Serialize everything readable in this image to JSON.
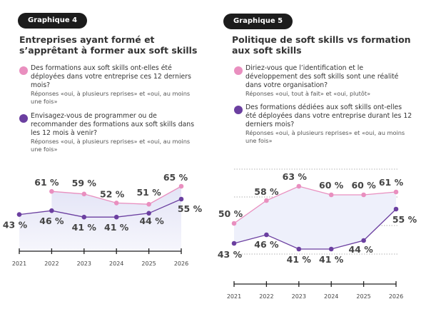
{
  "panels": [
    {
      "badge": "Graphique 4",
      "title": "Entreprises ayant formé et s’apprêtant à former aux soft skills",
      "legend": [
        {
          "question": "Des formations aux soft skills ont-elles été déployées dans votre entreprise ces 12 derniers mois?",
          "note": "Réponses «oui, à plusieurs reprises» et «oui, au moins une fois»",
          "color": "#e98fbf"
        },
        {
          "question": "Envisagez-vous de programmer ou de recommander des formations aux soft skills dans les 12 mois à venir?",
          "note": "Réponses «oui, à plusieurs reprises» et «oui, au moins une fois»",
          "color": "#6b3fa0"
        }
      ]
    },
    {
      "badge": "Graphique 5",
      "title": "Politique de soft skills vs formation aux soft skills",
      "legend": [
        {
          "question": "Diriez-vous que l’identification et le développement des soft skills sont une réalité dans votre organisation?",
          "note": "Réponses «oui, tout à fait» et «oui, plutôt»",
          "color": "#e98fbf"
        },
        {
          "question": "Des formations dédiées aux soft skills ont-elles été déployées dans votre entreprise durant les 12 derniers mois?",
          "note": "Réponses «oui, à plusieurs reprises» et «oui, au moins une fois»",
          "color": "#6b3fa0"
        }
      ]
    }
  ],
  "chart_data": [
    {
      "type": "line",
      "categories": [
        "2021",
        "2022",
        "2023",
        "2024",
        "2025",
        "2026"
      ],
      "series": [
        {
          "values": [
            null,
            61,
            59,
            52,
            51,
            65
          ],
          "labels": [
            "",
            "61 %",
            "59 %",
            "52 %",
            "51 %",
            "65 %"
          ],
          "color": "#e98fbf"
        },
        {
          "values": [
            43,
            46,
            41,
            41,
            44,
            55
          ],
          "labels": [
            "43 %",
            "46 %",
            "41 %",
            "41 %",
            "44 %",
            "55 %"
          ],
          "color": "#6b3fa0"
        }
      ],
      "grid": false,
      "fill": "area"
    },
    {
      "type": "line",
      "categories": [
        "2021",
        "2022",
        "2023",
        "2024",
        "2025",
        "2026"
      ],
      "series": [
        {
          "values": [
            50,
            58,
            63,
            60,
            60,
            61
          ],
          "labels": [
            "50 %",
            "58 %",
            "63 %",
            "60 %",
            "60 %",
            "61 %"
          ],
          "color": "#e98fbf"
        },
        {
          "values": [
            43,
            46,
            41,
            41,
            44,
            55
          ],
          "labels": [
            "43 %",
            "46 %",
            "41 %",
            "41 %",
            "44 %",
            "55 %"
          ],
          "color": "#6b3fa0"
        }
      ],
      "grid": true,
      "fill": "between"
    }
  ]
}
